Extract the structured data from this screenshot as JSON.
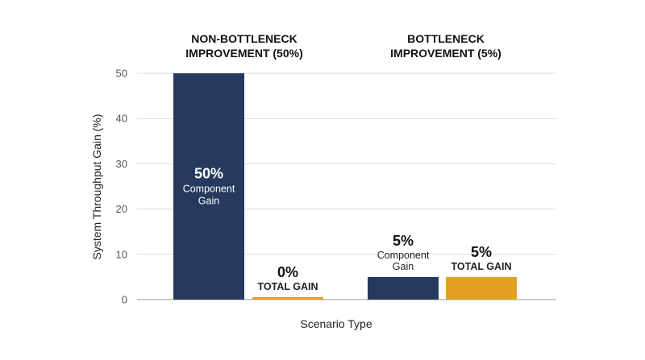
{
  "chart_data": {
    "type": "bar",
    "xlabel": "Scenario Type",
    "ylabel": "System Throughput Gain (%)",
    "ylim": [
      0,
      50
    ],
    "yticks": [
      0,
      10,
      20,
      30,
      40,
      50
    ],
    "grid": true,
    "groups": [
      {
        "title_lines": [
          "NON-BOTTLENECK",
          "IMPROVEMENT (50%)"
        ],
        "bars": [
          {
            "series": "component",
            "value": 50,
            "label_value": "50%",
            "label_lines": [
              "Component",
              "Gain"
            ]
          },
          {
            "series": "total",
            "value": 0,
            "label_value": "0%",
            "label_lines": [
              "TOTAL GAIN"
            ]
          }
        ]
      },
      {
        "title_lines": [
          "BOTTLENECK",
          "IMPROVEMENT (5%)"
        ],
        "bars": [
          {
            "series": "component",
            "value": 5,
            "label_value": "5%",
            "label_lines": [
              "Component",
              "Gain"
            ]
          },
          {
            "series": "total",
            "value": 5,
            "label_value": "5%",
            "label_lines": [
              "TOTAL GAIN"
            ]
          }
        ]
      }
    ],
    "colors": {
      "component": "#253a5e",
      "total": "#e3a024",
      "grid": "#d9d9d9",
      "axis": "#999999"
    }
  }
}
